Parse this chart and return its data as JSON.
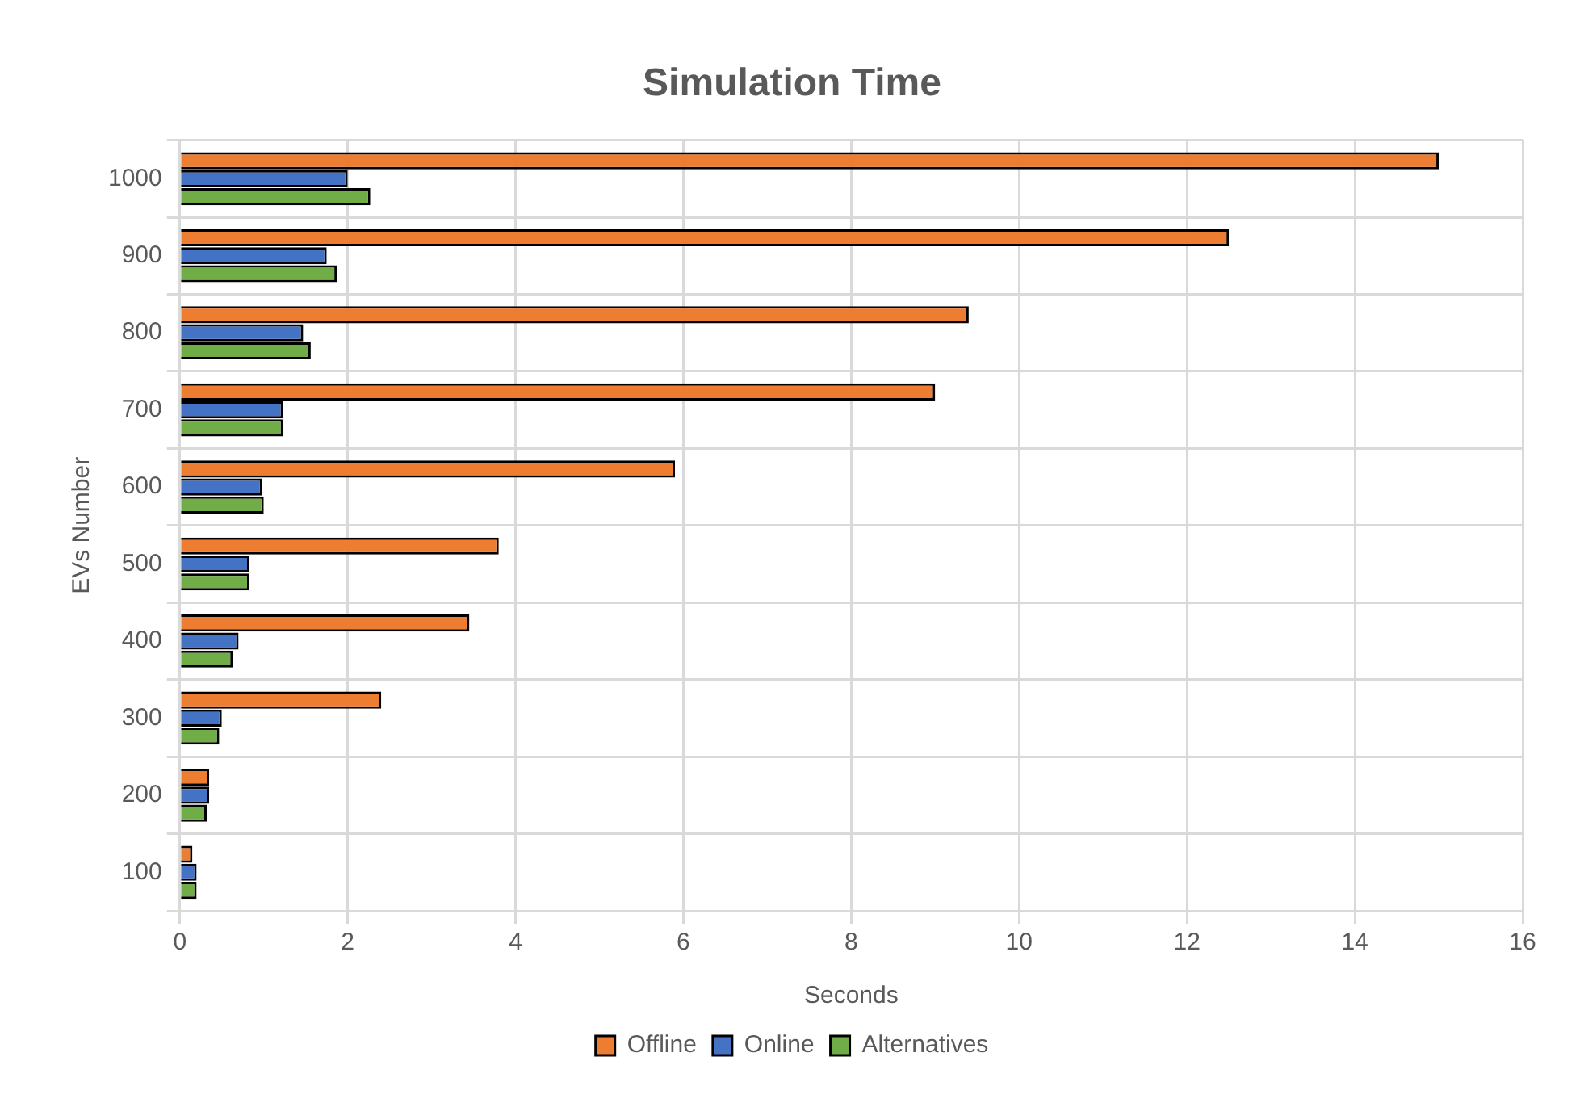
{
  "chart_data": {
    "type": "bar",
    "orientation": "horizontal",
    "title": "Simulation Time",
    "xlabel": "Seconds",
    "ylabel": "EVs Number",
    "categories": [
      "1000",
      "900",
      "800",
      "700",
      "600",
      "500",
      "400",
      "300",
      "200",
      "100"
    ],
    "series": [
      {
        "name": "Offline",
        "color": "#ed7d31",
        "values": [
          15.0,
          12.5,
          9.4,
          9.0,
          5.9,
          3.8,
          3.45,
          2.4,
          0.35,
          0.15
        ]
      },
      {
        "name": "Online",
        "color": "#4472c4",
        "values": [
          2.0,
          1.75,
          1.47,
          1.23,
          0.98,
          0.83,
          0.7,
          0.5,
          0.35,
          0.2
        ]
      },
      {
        "name": "Alternatives",
        "color": "#70ad47",
        "values": [
          2.27,
          1.87,
          1.56,
          1.23,
          1.0,
          0.83,
          0.63,
          0.47,
          0.32,
          0.2
        ]
      }
    ],
    "xlim": [
      0,
      16
    ],
    "xticks": [
      0,
      2,
      4,
      6,
      8,
      10,
      12,
      14,
      16
    ],
    "grid": true,
    "legend": "bottom"
  }
}
